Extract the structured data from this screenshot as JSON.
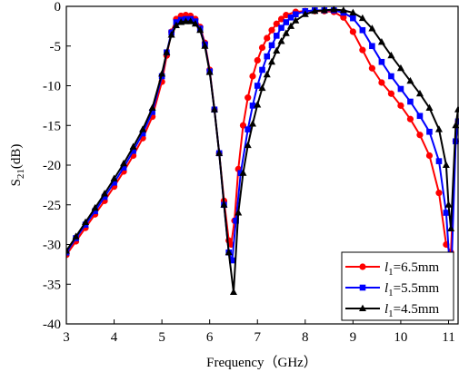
{
  "chart_data": {
    "type": "line",
    "xlabel": "Frequency（GHz）",
    "ylabel_main": "S",
    "ylabel_sub": "21",
    "ylabel_unit": "(dB)",
    "xlim": [
      3,
      11.2
    ],
    "ylim": [
      -40,
      0
    ],
    "x_ticks": [
      3,
      4,
      5,
      6,
      7,
      8,
      9,
      10,
      11
    ],
    "y_ticks": [
      0,
      -5,
      -10,
      -15,
      -20,
      -25,
      -30,
      -35,
      -40
    ],
    "grid": false,
    "legend_position": "bottom-right",
    "series": [
      {
        "name_var": "l",
        "name_sub": "1",
        "name_val": "=6.5mm",
        "color": "#ff0000",
        "marker": "circle",
        "points": [
          [
            3.0,
            -31.3
          ],
          [
            3.2,
            -29.6
          ],
          [
            3.4,
            -27.9
          ],
          [
            3.6,
            -26.2
          ],
          [
            3.8,
            -24.5
          ],
          [
            4.0,
            -22.7
          ],
          [
            4.2,
            -20.8
          ],
          [
            4.4,
            -18.8
          ],
          [
            4.6,
            -16.6
          ],
          [
            4.8,
            -13.9
          ],
          [
            5.0,
            -9.5
          ],
          [
            5.1,
            -6.2
          ],
          [
            5.2,
            -3.2
          ],
          [
            5.3,
            -1.6
          ],
          [
            5.4,
            -1.2
          ],
          [
            5.5,
            -1.1
          ],
          [
            5.6,
            -1.2
          ],
          [
            5.7,
            -1.6
          ],
          [
            5.8,
            -2.6
          ],
          [
            5.9,
            -4.6
          ],
          [
            6.0,
            -8.0
          ],
          [
            6.1,
            -13.0
          ],
          [
            6.2,
            -18.5
          ],
          [
            6.3,
            -24.5
          ],
          [
            6.4,
            -29.5
          ],
          [
            6.45,
            -30.0
          ],
          [
            6.52,
            -27.0
          ],
          [
            6.6,
            -20.5
          ],
          [
            6.7,
            -15.0
          ],
          [
            6.8,
            -11.5
          ],
          [
            6.9,
            -8.8
          ],
          [
            7.0,
            -6.8
          ],
          [
            7.1,
            -5.2
          ],
          [
            7.2,
            -4.0
          ],
          [
            7.3,
            -3.0
          ],
          [
            7.4,
            -2.2
          ],
          [
            7.5,
            -1.6
          ],
          [
            7.6,
            -1.1
          ],
          [
            7.8,
            -0.7
          ],
          [
            8.0,
            -0.6
          ],
          [
            8.2,
            -0.6
          ],
          [
            8.4,
            -0.6
          ],
          [
            8.6,
            -0.7
          ],
          [
            8.8,
            -1.4
          ],
          [
            9.0,
            -3.2
          ],
          [
            9.2,
            -5.5
          ],
          [
            9.4,
            -7.8
          ],
          [
            9.6,
            -9.6
          ],
          [
            9.8,
            -11.0
          ],
          [
            10.0,
            -12.5
          ],
          [
            10.2,
            -14.2
          ],
          [
            10.4,
            -16.2
          ],
          [
            10.6,
            -18.8
          ],
          [
            10.8,
            -23.5
          ],
          [
            10.95,
            -30.0
          ],
          [
            11.05,
            -31.0
          ],
          [
            11.15,
            -17.0
          ],
          [
            11.2,
            -14.5
          ]
        ]
      },
      {
        "name_var": "l",
        "name_sub": "1",
        "name_val": "=5.5mm",
        "color": "#0000ff",
        "marker": "square",
        "points": [
          [
            3.0,
            -31.0
          ],
          [
            3.2,
            -29.2
          ],
          [
            3.4,
            -27.5
          ],
          [
            3.6,
            -25.8
          ],
          [
            3.8,
            -24.0
          ],
          [
            4.0,
            -22.2
          ],
          [
            4.2,
            -20.3
          ],
          [
            4.4,
            -18.2
          ],
          [
            4.6,
            -16.0
          ],
          [
            4.8,
            -13.3
          ],
          [
            5.0,
            -8.8
          ],
          [
            5.1,
            -5.8
          ],
          [
            5.2,
            -3.3
          ],
          [
            5.3,
            -2.0
          ],
          [
            5.4,
            -1.7
          ],
          [
            5.5,
            -1.6
          ],
          [
            5.6,
            -1.6
          ],
          [
            5.7,
            -1.9
          ],
          [
            5.8,
            -2.8
          ],
          [
            5.9,
            -4.8
          ],
          [
            6.0,
            -8.2
          ],
          [
            6.1,
            -13.0
          ],
          [
            6.2,
            -18.5
          ],
          [
            6.3,
            -25.0
          ],
          [
            6.4,
            -31.0
          ],
          [
            6.47,
            -32.0
          ],
          [
            6.55,
            -27.0
          ],
          [
            6.65,
            -21.0
          ],
          [
            6.8,
            -15.5
          ],
          [
            6.9,
            -12.5
          ],
          [
            7.0,
            -10.0
          ],
          [
            7.1,
            -8.0
          ],
          [
            7.2,
            -6.3
          ],
          [
            7.3,
            -4.9
          ],
          [
            7.4,
            -3.7
          ],
          [
            7.5,
            -2.7
          ],
          [
            7.6,
            -2.0
          ],
          [
            7.7,
            -1.4
          ],
          [
            7.8,
            -1.0
          ],
          [
            8.0,
            -0.6
          ],
          [
            8.2,
            -0.5
          ],
          [
            8.4,
            -0.5
          ],
          [
            8.6,
            -0.5
          ],
          [
            8.8,
            -0.8
          ],
          [
            9.0,
            -1.5
          ],
          [
            9.2,
            -3.0
          ],
          [
            9.4,
            -5.0
          ],
          [
            9.6,
            -7.0
          ],
          [
            9.8,
            -8.8
          ],
          [
            10.0,
            -10.4
          ],
          [
            10.2,
            -12.0
          ],
          [
            10.4,
            -13.8
          ],
          [
            10.6,
            -15.8
          ],
          [
            10.8,
            -19.5
          ],
          [
            10.95,
            -26.0
          ],
          [
            11.05,
            -35.0
          ],
          [
            11.15,
            -17.0
          ],
          [
            11.2,
            -14.5
          ]
        ]
      },
      {
        "name_var": "l",
        "name_sub": "1",
        "name_val": "=4.5mm",
        "color": "#000000",
        "marker": "triangle",
        "points": [
          [
            3.0,
            -30.8
          ],
          [
            3.2,
            -29.0
          ],
          [
            3.4,
            -27.2
          ],
          [
            3.6,
            -25.4
          ],
          [
            3.8,
            -23.6
          ],
          [
            4.0,
            -21.7
          ],
          [
            4.2,
            -19.8
          ],
          [
            4.4,
            -17.7
          ],
          [
            4.6,
            -15.5
          ],
          [
            4.8,
            -12.8
          ],
          [
            5.0,
            -8.5
          ],
          [
            5.1,
            -5.8
          ],
          [
            5.2,
            -3.6
          ],
          [
            5.3,
            -2.4
          ],
          [
            5.4,
            -2.0
          ],
          [
            5.5,
            -1.9
          ],
          [
            5.6,
            -1.9
          ],
          [
            5.7,
            -2.2
          ],
          [
            5.8,
            -3.0
          ],
          [
            5.9,
            -5.0
          ],
          [
            6.0,
            -8.3
          ],
          [
            6.1,
            -13.0
          ],
          [
            6.2,
            -18.5
          ],
          [
            6.3,
            -25.0
          ],
          [
            6.4,
            -31.0
          ],
          [
            6.5,
            -36.0
          ],
          [
            6.6,
            -26.0
          ],
          [
            6.7,
            -21.0
          ],
          [
            6.8,
            -17.5
          ],
          [
            6.9,
            -14.8
          ],
          [
            7.0,
            -12.4
          ],
          [
            7.1,
            -10.3
          ],
          [
            7.2,
            -8.6
          ],
          [
            7.3,
            -7.0
          ],
          [
            7.4,
            -5.6
          ],
          [
            7.5,
            -4.4
          ],
          [
            7.6,
            -3.4
          ],
          [
            7.7,
            -2.5
          ],
          [
            7.8,
            -1.8
          ],
          [
            8.0,
            -1.0
          ],
          [
            8.2,
            -0.6
          ],
          [
            8.4,
            -0.5
          ],
          [
            8.6,
            -0.4
          ],
          [
            8.8,
            -0.5
          ],
          [
            9.0,
            -0.8
          ],
          [
            9.2,
            -1.5
          ],
          [
            9.4,
            -2.8
          ],
          [
            9.6,
            -4.5
          ],
          [
            9.8,
            -6.2
          ],
          [
            10.0,
            -7.8
          ],
          [
            10.2,
            -9.4
          ],
          [
            10.4,
            -11.0
          ],
          [
            10.6,
            -12.8
          ],
          [
            10.8,
            -15.5
          ],
          [
            10.95,
            -20.0
          ],
          [
            11.0,
            -25.0
          ],
          [
            11.05,
            -28.0
          ],
          [
            11.15,
            -15.0
          ],
          [
            11.2,
            -13.0
          ]
        ]
      }
    ]
  }
}
